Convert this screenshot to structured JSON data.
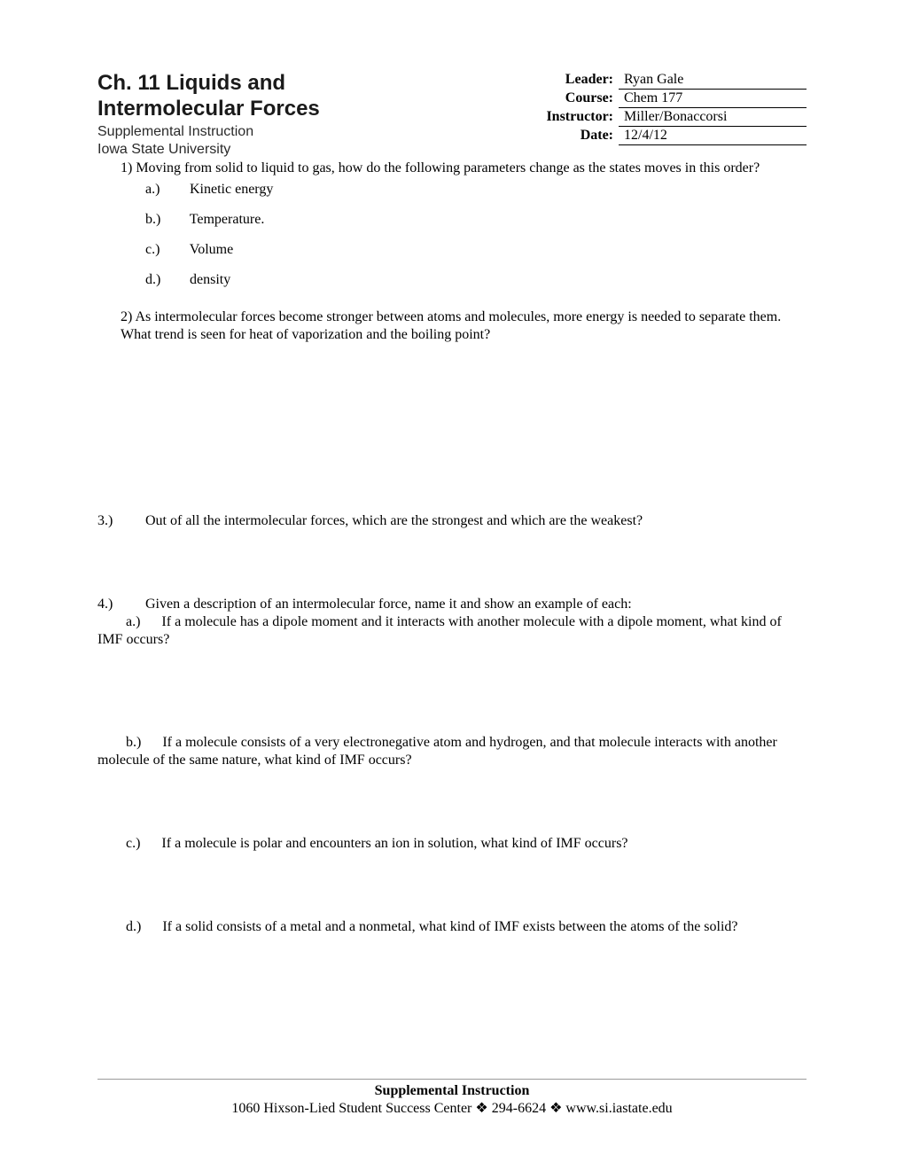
{
  "header": {
    "title_line1": "Ch. 11 Liquids and",
    "title_line2": "Intermolecular Forces",
    "subtitle_line1": "Supplemental Instruction",
    "subtitle_line2": "Iowa State University",
    "info": {
      "leader_label": "Leader:",
      "leader_value": "Ryan Gale",
      "course_label": "Course:",
      "course_value": "Chem 177",
      "instructor_label": "Instructor:",
      "instructor_value": "Miller/Bonaccorsi",
      "date_label": "Date:",
      "date_value": "12/4/12"
    }
  },
  "q1": {
    "lead": "1)  Moving from solid to liquid to gas, how do the following parameters change as the states moves in this order?",
    "a_lbl": "a.)",
    "a_txt": "Kinetic energy",
    "b_lbl": "b.)",
    "b_txt": "Temperature.",
    "c_lbl": "c.)",
    "c_txt": "Volume",
    "d_lbl": "d.)",
    "d_txt": "density"
  },
  "q2": {
    "text": "2)  As intermolecular forces become stronger between atoms and molecules, more energy is needed to separate them.  What trend is seen for heat of vaporization and the boiling point?"
  },
  "q3": {
    "num": "3.)",
    "text": "Out of all the intermolecular forces, which are the strongest and which are the weakest?"
  },
  "q4": {
    "num": "4.)",
    "lead": "Given a description of an intermolecular force, name it and show an example of each:",
    "a_full": "        a.)      If a molecule has a dipole moment and it interacts with another molecule with a dipole moment, what kind of IMF occurs?",
    "b_full": "        b.)      If a molecule consists of a very electronegative atom and hydrogen, and that molecule interacts with another molecule of the same nature, what kind of IMF occurs?",
    "c_full": "        c.)      If a molecule is polar and encounters an ion in solution, what kind of IMF occurs?",
    "d_full": "        d.)      If a solid consists of a metal and a nonmetal, what kind of IMF exists between the atoms of the solid?"
  },
  "footer": {
    "title": "Supplemental Instruction",
    "address": "1060 Hixson-Lied Student Success Center",
    "sep": "❖",
    "phone": "294-6624",
    "url": "www.si.iastate.edu"
  }
}
